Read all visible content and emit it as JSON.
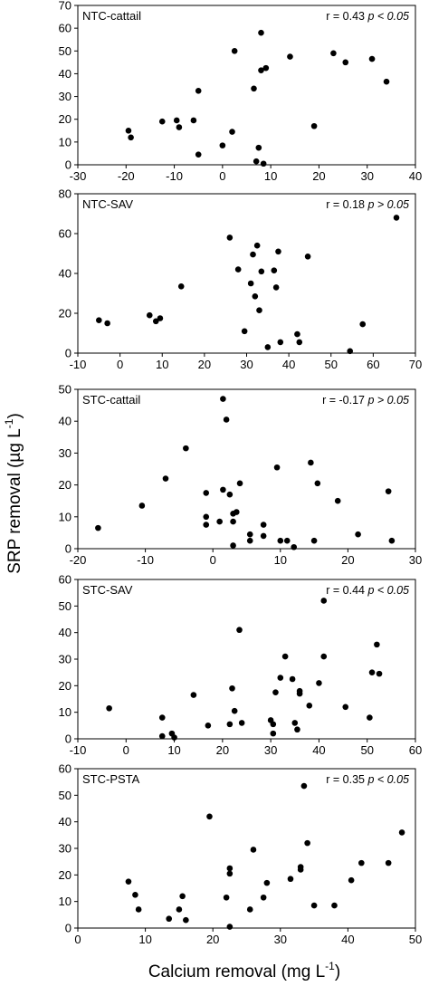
{
  "figure": {
    "ylabel_prefix": "SRP removal  (",
    "ylabel_unit": "µg L",
    "ylabel_exp": "-1",
    "ylabel_suffix": ")",
    "xlabel_prefix": "Calcium removal (mg L",
    "xlabel_exp": "-1",
    "xlabel_suffix": ")"
  },
  "chart_data": [
    {
      "type": "scatter",
      "title": "NTC-cattail",
      "r_text": "r = 0.43",
      "p_text": "p < 0.05",
      "xlim": [
        -30,
        40
      ],
      "ylim": [
        0,
        70
      ],
      "xticks": [
        -30,
        -20,
        -10,
        0,
        10,
        20,
        30,
        40
      ],
      "yticks": [
        0,
        10,
        20,
        30,
        40,
        50,
        60,
        70
      ],
      "x": [
        -19.5,
        -19,
        -12.5,
        -9.5,
        -9,
        -6,
        -5,
        -5,
        0,
        2,
        2.5,
        6.5,
        7,
        7.5,
        8,
        8,
        8.5,
        9,
        14,
        19,
        23,
        25.5,
        31,
        34
      ],
      "y": [
        15,
        12,
        19,
        19.5,
        16.5,
        19.5,
        32.5,
        4.5,
        8.5,
        14.5,
        50,
        33.5,
        1.5,
        7.5,
        58,
        41.5,
        0.5,
        42.5,
        47.5,
        17,
        49,
        45,
        46.5,
        36.5
      ]
    },
    {
      "type": "scatter",
      "title": "NTC-SAV",
      "r_text": "r = 0.18",
      "p_text": "p > 0.05",
      "xlim": [
        -10,
        70
      ],
      "ylim": [
        0,
        80
      ],
      "xticks": [
        -10,
        0,
        10,
        20,
        30,
        40,
        50,
        60,
        70
      ],
      "yticks": [
        0,
        20,
        40,
        60,
        80
      ],
      "x": [
        -5,
        -3,
        7,
        8.5,
        9.5,
        14.5,
        26,
        28,
        29.5,
        31,
        31.5,
        32,
        32.5,
        33,
        33.5,
        35,
        36.5,
        37,
        37.5,
        38,
        42,
        42.5,
        44.5,
        54.5,
        57.5,
        65.5
      ],
      "y": [
        16.5,
        15,
        19,
        16,
        17.5,
        33.5,
        58,
        42,
        11,
        35,
        49.5,
        28.5,
        54,
        21.5,
        41,
        3,
        41.5,
        33,
        51,
        5.5,
        9.5,
        5.5,
        48.5,
        1,
        14.5,
        68
      ]
    },
    {
      "type": "scatter",
      "title": "STC-cattail",
      "r_text": "r = -0.17",
      "p_text": "p > 0.05",
      "xlim": [
        -20,
        30
      ],
      "ylim": [
        0,
        50
      ],
      "xticks": [
        -20,
        -10,
        0,
        10,
        20,
        30
      ],
      "yticks": [
        0,
        10,
        20,
        30,
        40,
        50
      ],
      "x": [
        -17,
        -10.5,
        -7,
        -4,
        -1,
        -1,
        -1,
        1,
        1.5,
        1.5,
        2,
        2.5,
        3,
        3,
        3,
        3.5,
        4,
        5.5,
        5.5,
        7.5,
        7.5,
        9.5,
        10,
        11,
        12,
        14.5,
        15,
        15.5,
        18.5,
        21.5,
        26,
        26.5
      ],
      "y": [
        6.5,
        13.5,
        22,
        31.5,
        17.5,
        10,
        7.5,
        8.5,
        47,
        18.5,
        40.5,
        17,
        8.5,
        11,
        1,
        11.5,
        20.5,
        4.5,
        2.5,
        7.5,
        4,
        25.5,
        2.5,
        2.5,
        0.5,
        27,
        2.5,
        20.5,
        15,
        4.5,
        18,
        2.5
      ]
    },
    {
      "type": "scatter",
      "title": "STC-SAV",
      "r_text": "r = 0.44",
      "p_text": "p < 0.05",
      "xlim": [
        -10,
        60
      ],
      "ylim": [
        0,
        60
      ],
      "xticks": [
        -10,
        0,
        10,
        20,
        30,
        40,
        50,
        60
      ],
      "yticks": [
        0,
        10,
        20,
        30,
        40,
        50,
        60
      ],
      "x": [
        -3.5,
        7.5,
        7.5,
        9.5,
        10,
        14,
        17,
        21.5,
        22,
        22.5,
        23.5,
        24,
        30,
        30.5,
        30.5,
        31,
        32,
        33,
        34.5,
        35,
        35.5,
        36,
        36,
        38,
        40,
        41,
        41,
        45.5,
        50.5,
        51,
        52,
        52.5
      ],
      "y": [
        11.5,
        8,
        1,
        2,
        0.5,
        16.5,
        5,
        5.5,
        19,
        10.5,
        41,
        6,
        7,
        5.5,
        2,
        17.5,
        23,
        31,
        22.5,
        6,
        3.5,
        17,
        18,
        12.5,
        21,
        52,
        31,
        12,
        8,
        25,
        35.5,
        24.5
      ]
    },
    {
      "type": "scatter",
      "title": "STC-PSTA",
      "r_text": "r = 0.35",
      "p_text": "p < 0.05",
      "xlim": [
        0,
        50
      ],
      "ylim": [
        0,
        60
      ],
      "xticks": [
        0,
        10,
        20,
        30,
        40,
        50
      ],
      "yticks": [
        0,
        10,
        20,
        30,
        40,
        50,
        60
      ],
      "x": [
        7.5,
        8.5,
        9,
        13.5,
        15,
        15.5,
        16,
        19.5,
        22,
        22.5,
        22.5,
        22.5,
        25.5,
        26,
        27.5,
        28,
        31.5,
        33,
        33,
        33.5,
        34,
        35,
        38,
        40.5,
        42,
        46,
        48
      ],
      "y": [
        17.5,
        12.5,
        7,
        3.5,
        7,
        12,
        3,
        42,
        11.5,
        22.5,
        20.5,
        0.5,
        7,
        29.5,
        11.5,
        17,
        18.5,
        23,
        22,
        53.5,
        32,
        8.5,
        8.5,
        18,
        24.5,
        24.5,
        36
      ]
    }
  ]
}
